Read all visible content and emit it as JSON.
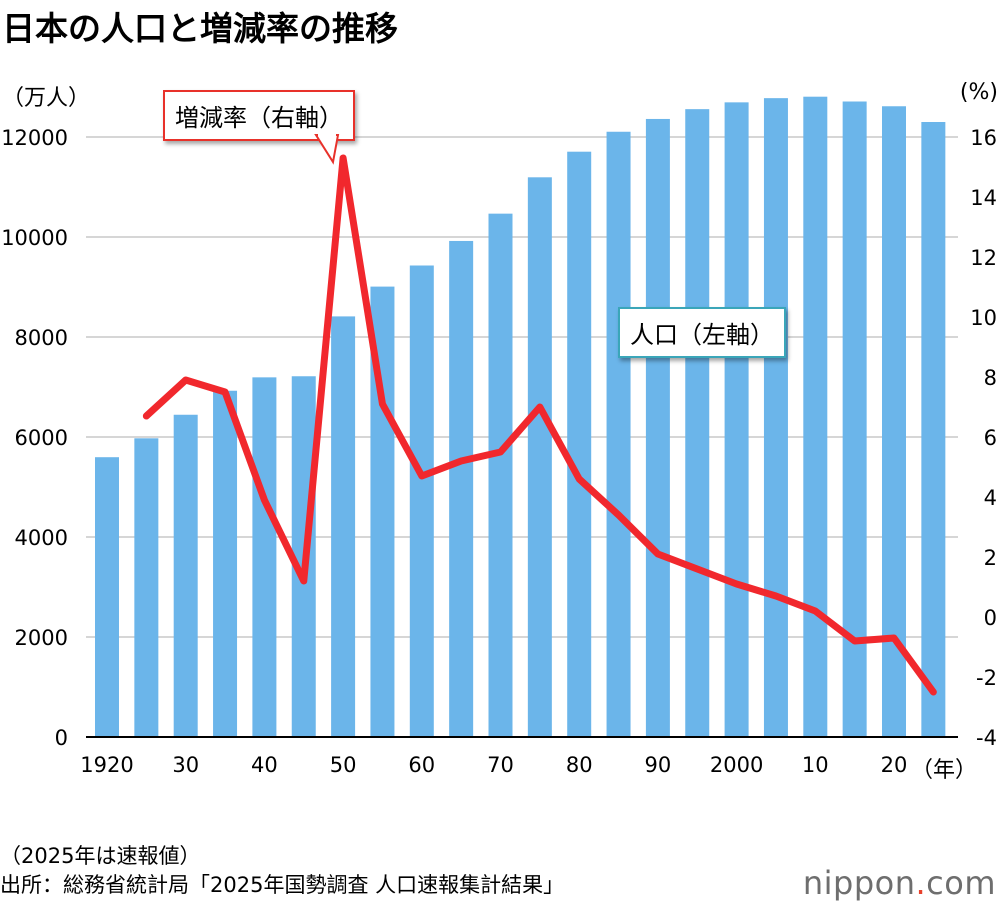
{
  "title": "日本の人口と増減率の推移",
  "left_unit": "（万人）",
  "right_unit": "(%)",
  "x_unit": "（年）",
  "callout_rate": "増減率（右軸）",
  "callout_pop": "人口（左軸）",
  "note": "（2025年は速報値）",
  "source": "出所：総務省統計局「2025年国勢調査 人口速報集計結果」",
  "brand": {
    "main": "nippon",
    "dot": ".",
    "suffix": "com"
  },
  "colors": {
    "bar": "#6bb5ea",
    "line": "#f1282d",
    "grid": "#c8c8c8"
  },
  "chart_data": {
    "type": "bar+line",
    "x": [
      1920,
      1925,
      1930,
      1935,
      1940,
      1945,
      1950,
      1955,
      1960,
      1965,
      1970,
      1975,
      1980,
      1985,
      1990,
      1995,
      2000,
      2005,
      2010,
      2015,
      2020,
      2025
    ],
    "x_tick_labels": [
      "1920",
      "30",
      "40",
      "50",
      "60",
      "70",
      "80",
      "90",
      "2000",
      "10",
      "20"
    ],
    "x_tick_years": [
      1920,
      1930,
      1940,
      1950,
      1960,
      1970,
      1980,
      1990,
      2000,
      2010,
      2020
    ],
    "series": [
      {
        "name": "人口（左軸）",
        "axis": "left",
        "type": "bar",
        "values": [
          5596,
          5974,
          6445,
          6925,
          7193,
          7215,
          8412,
          9008,
          9430,
          9921,
          10467,
          11194,
          11706,
          12105,
          12361,
          12557,
          12693,
          12777,
          12806,
          12710,
          12615,
          12300
        ]
      },
      {
        "name": "増減率（右軸）",
        "axis": "right",
        "type": "line",
        "values": [
          null,
          6.7,
          7.9,
          7.5,
          3.9,
          1.2,
          15.3,
          7.1,
          4.7,
          5.2,
          5.5,
          7.0,
          4.6,
          3.4,
          2.1,
          1.6,
          1.1,
          0.7,
          0.2,
          -0.8,
          -0.7,
          -2.5
        ]
      }
    ],
    "left_axis": {
      "ylim": [
        0,
        12000
      ],
      "ticks": [
        0,
        2000,
        4000,
        6000,
        8000,
        10000,
        12000
      ]
    },
    "right_axis": {
      "ylim": [
        -4,
        16
      ],
      "ticks": [
        -4,
        -2,
        0,
        2,
        4,
        6,
        8,
        10,
        12,
        14,
        16
      ]
    },
    "grid": true
  }
}
